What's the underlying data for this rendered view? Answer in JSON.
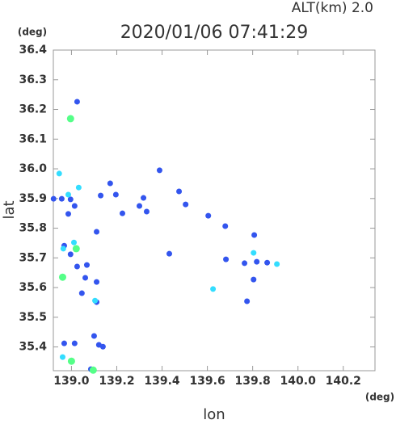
{
  "chart_data": {
    "type": "scatter",
    "title": "2020/01/06 07:41:29",
    "annotation": "ALT(km)  2.0",
    "x_unit": "(deg)",
    "y_unit": "(deg)",
    "xlabel": "lon",
    "ylabel": "lat",
    "xlim": [
      138.92,
      140.34
    ],
    "ylim": [
      35.32,
      36.4
    ],
    "xticks": [
      {
        "value": 139.0,
        "label": "139.0"
      },
      139.2,
      139.4,
      139.6,
      139.8,
      {
        "value": 140.0,
        "label": "140.0"
      },
      140.2
    ],
    "yticks": [
      35.4,
      35.5,
      35.6,
      35.7,
      35.8,
      35.9,
      {
        "value": 36.0,
        "label": "36.0"
      },
      36.1,
      36.2,
      36.3,
      36.4
    ],
    "series": [
      {
        "color": "#3355ee",
        "x": [
          139.025,
          139.129,
          139.196,
          139.225,
          139.171,
          139.318,
          139.3,
          139.332,
          139.475,
          139.504,
          139.389,
          139.604,
          139.432,
          139.682,
          139.764,
          139.818,
          139.864,
          139.804,
          139.775,
          139.679,
          139.807,
          138.957,
          138.996,
          138.968,
          139.025,
          139.068,
          139.061,
          139.046,
          139.111,
          139.111,
          139.1,
          139.121,
          139.139,
          138.968,
          139.014,
          139.086,
          138.986,
          139.111,
          139.014,
          138.996,
          138.921
        ],
        "y": [
          36.226,
          35.91,
          35.913,
          35.85,
          35.951,
          35.902,
          35.875,
          35.856,
          35.924,
          35.88,
          35.995,
          35.842,
          35.714,
          35.695,
          35.682,
          35.687,
          35.684,
          35.627,
          35.554,
          35.807,
          35.777,
          35.899,
          35.897,
          35.741,
          35.671,
          35.676,
          35.633,
          35.581,
          35.551,
          35.619,
          35.437,
          35.407,
          35.401,
          35.412,
          35.412,
          35.325,
          35.848,
          35.788,
          35.875,
          35.712,
          35.899
        ]
      },
      {
        "color": "#33ddff",
        "x": [
          138.946,
          139.032,
          138.986,
          139.011,
          138.964,
          139.104,
          138.961,
          139.625,
          139.804,
          139.907
        ],
        "y": [
          35.984,
          35.937,
          35.913,
          35.752,
          35.731,
          35.556,
          35.366,
          35.595,
          35.717,
          35.679
        ]
      },
      {
        "color": "#55ff88",
        "x": [
          138.996,
          138.961,
          139.0,
          139.021,
          139.096
        ],
        "y": [
          36.169,
          35.635,
          35.352,
          35.731,
          35.322
        ]
      }
    ]
  }
}
